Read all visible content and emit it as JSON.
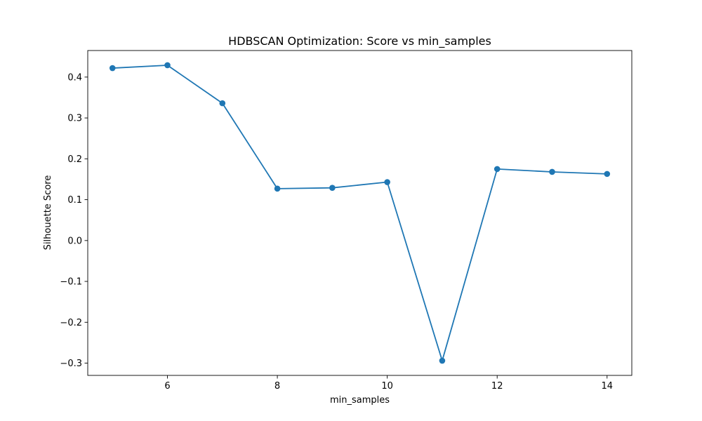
{
  "chart_data": {
    "type": "line",
    "title": "HDBSCAN Optimization: Score vs min_samples",
    "xlabel": "min_samples",
    "ylabel": "Silhouette Score",
    "x": [
      5,
      6,
      7,
      8,
      9,
      10,
      11,
      12,
      13,
      14
    ],
    "series": [
      {
        "values": [
          0.422,
          0.429,
          0.336,
          0.127,
          0.129,
          0.143,
          -0.294,
          0.175,
          0.168,
          0.163
        ],
        "color": "#1f77b4",
        "marker": "circle"
      }
    ],
    "xlim": [
      4.55,
      14.45
    ],
    "ylim": [
      -0.33,
      0.465
    ],
    "xticks": [
      6,
      8,
      10,
      12,
      14
    ],
    "xtick_labels": [
      "6",
      "8",
      "10",
      "12",
      "14"
    ],
    "yticks": [
      -0.3,
      -0.2,
      -0.1,
      0.0,
      0.1,
      0.2,
      0.3,
      0.4
    ],
    "ytick_labels": [
      "−0.3",
      "−0.2",
      "−0.1",
      "0.0",
      "0.1",
      "0.2",
      "0.3",
      "0.4"
    ],
    "grid": false,
    "legend": false
  }
}
